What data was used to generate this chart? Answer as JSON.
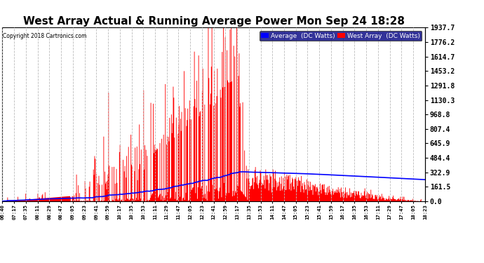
{
  "title": "West Array Actual & Running Average Power Mon Sep 24 18:28",
  "copyright": "Copyright 2018 Cartronics.com",
  "legend_labels": [
    "Average  (DC Watts)",
    "West Array  (DC Watts)"
  ],
  "legend_colors": [
    "#0000ff",
    "#ff0000"
  ],
  "legend_bg": "#000080",
  "ylabel_right_values": [
    1937.7,
    1776.2,
    1614.7,
    1453.2,
    1291.8,
    1130.3,
    968.8,
    807.4,
    645.9,
    484.4,
    322.9,
    161.5,
    0.0
  ],
  "ymax": 1937.7,
  "ymin": 0.0,
  "background_color": "#ffffff",
  "plot_bg": "#ffffff",
  "grid_color": "#bbbbbb",
  "bar_color": "#ff0000",
  "avg_line_color": "#0000ff",
  "title_fontsize": 11,
  "x_tick_labels": [
    "06:40",
    "07:17",
    "07:35",
    "08:11",
    "08:29",
    "08:47",
    "09:05",
    "09:23",
    "09:41",
    "09:59",
    "10:17",
    "10:35",
    "10:53",
    "11:11",
    "11:29",
    "11:47",
    "12:05",
    "12:23",
    "12:41",
    "12:59",
    "13:17",
    "13:35",
    "13:53",
    "14:11",
    "14:47",
    "15:05",
    "15:23",
    "15:41",
    "15:59",
    "16:17",
    "16:35",
    "16:53",
    "17:11",
    "17:29",
    "17:47",
    "18:05",
    "18:23"
  ],
  "n_points": 700
}
